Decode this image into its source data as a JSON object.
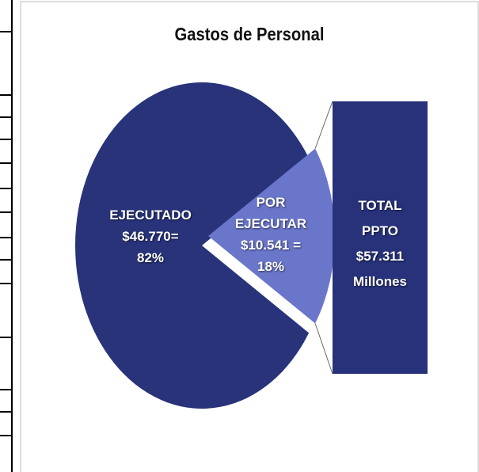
{
  "chart_data": {
    "type": "pie",
    "title": "Gastos de Personal",
    "categories": [
      "EJECUTADO",
      "POR EJECUTAR"
    ],
    "amount_labels": [
      "$46.770=",
      "$10.541 ="
    ],
    "values": [
      82,
      18
    ],
    "value_labels": [
      "82%",
      "18%"
    ],
    "colors": [
      "#28337a",
      "#6a76c9"
    ],
    "total": {
      "lines": [
        "TOTAL",
        "PPTO",
        "$57.311",
        "Millones"
      ],
      "color": "#27327a"
    }
  }
}
